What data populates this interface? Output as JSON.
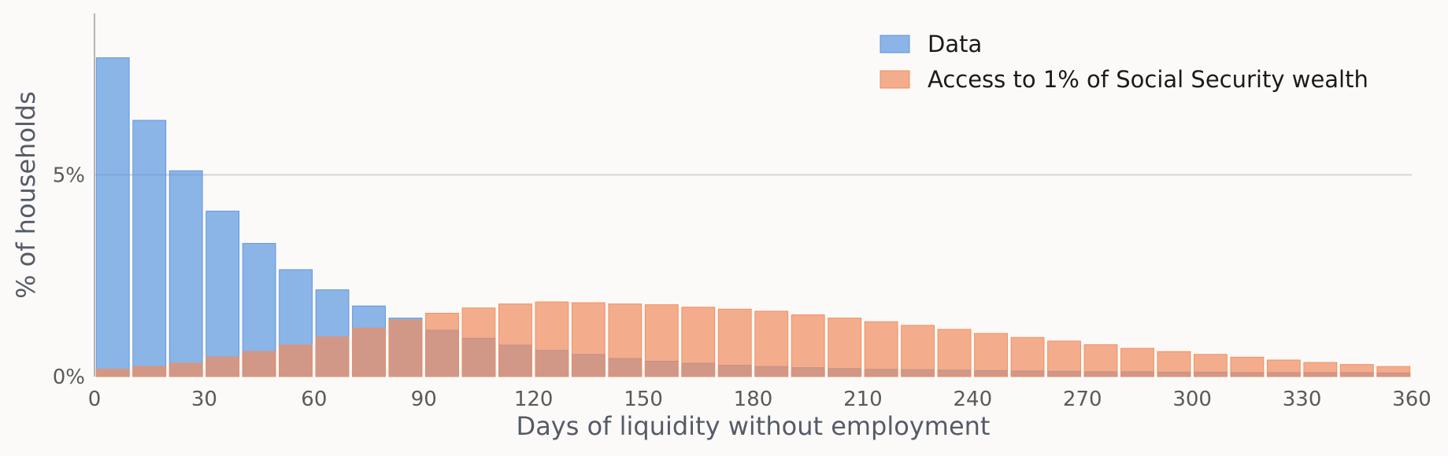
{
  "chart_data": {
    "type": "bar",
    "title": "",
    "xlabel": "Days of liquidity without employment",
    "ylabel": "% of households",
    "xlim": [
      0,
      360
    ],
    "ylim": [
      0,
      9.0
    ],
    "bin_width": 10,
    "x_ticks": [
      0,
      30,
      60,
      90,
      120,
      150,
      180,
      210,
      240,
      270,
      300,
      330,
      360
    ],
    "y_ticks": [
      {
        "value": 0,
        "label": "0%"
      },
      {
        "value": 5,
        "label": "5%"
      }
    ],
    "grid": {
      "y": true,
      "x": false
    },
    "legend_position": "top-right",
    "x": [
      5,
      15,
      25,
      35,
      45,
      55,
      65,
      75,
      85,
      95,
      105,
      115,
      125,
      135,
      145,
      155,
      165,
      175,
      185,
      195,
      205,
      215,
      225,
      235,
      245,
      255,
      265,
      275,
      285,
      295,
      305,
      315,
      325,
      335,
      345,
      355
    ],
    "series": [
      {
        "name": "Data",
        "color": "#5b95e0",
        "values": [
          7.9,
          6.35,
          5.1,
          4.1,
          3.3,
          2.65,
          2.15,
          1.75,
          1.45,
          1.15,
          0.95,
          0.78,
          0.65,
          0.55,
          0.45,
          0.38,
          0.33,
          0.28,
          0.25,
          0.22,
          0.2,
          0.18,
          0.17,
          0.16,
          0.15,
          0.14,
          0.13,
          0.12,
          0.12,
          0.11,
          0.11,
          0.1,
          0.1,
          0.1,
          0.1,
          0.09
        ]
      },
      {
        "name": "Access to 1% of Social Security wealth",
        "color": "#f08c5e",
        "values": [
          0.18,
          0.25,
          0.33,
          0.48,
          0.62,
          0.78,
          0.98,
          1.2,
          1.4,
          1.57,
          1.7,
          1.8,
          1.85,
          1.83,
          1.8,
          1.78,
          1.72,
          1.67,
          1.62,
          1.53,
          1.45,
          1.36,
          1.27,
          1.17,
          1.07,
          0.97,
          0.88,
          0.79,
          0.7,
          0.62,
          0.55,
          0.48,
          0.41,
          0.35,
          0.3,
          0.25
        ]
      }
    ]
  }
}
